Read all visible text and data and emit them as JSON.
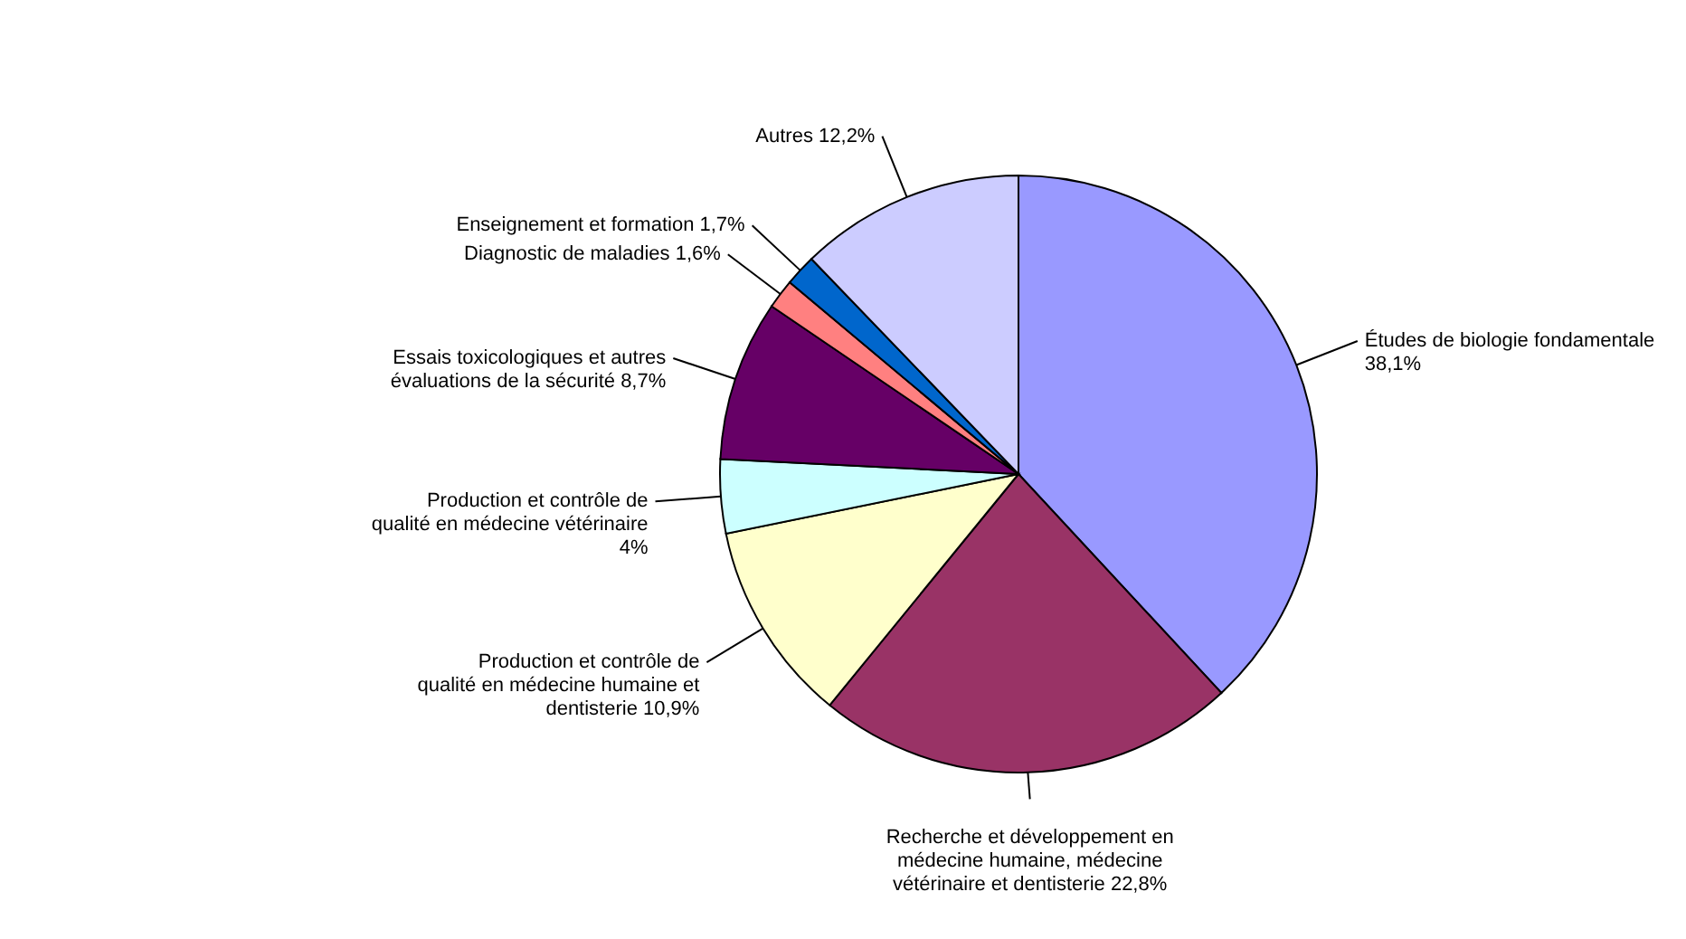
{
  "chart_data": {
    "type": "pie",
    "categories": [
      "Études de biologie fondamentale",
      "Recherche et développement en médecine humaine, médecine vétérinaire et dentisterie",
      "Production et contrôle de qualité en médecine humaine et dentisterie",
      "Production et contrôle de qualité en médecine vétérinaire",
      "Essais toxicologiques et autres évaluations de la sécurité",
      "Diagnostic de maladies",
      "Enseignement et formation",
      "Autres"
    ],
    "values": [
      38.1,
      22.8,
      10.9,
      4,
      8.7,
      1.6,
      1.7,
      12.2
    ],
    "value_labels": [
      "38,1%",
      "22,8%",
      "10,9%",
      "4%",
      "8,7%",
      "1,6%",
      "1,7%",
      "12,2%"
    ],
    "colors": [
      "#9999ff",
      "#993366",
      "#ffffcc",
      "#ccffff",
      "#660066",
      "#ff8080",
      "#0066cc",
      "#ccccff"
    ]
  }
}
